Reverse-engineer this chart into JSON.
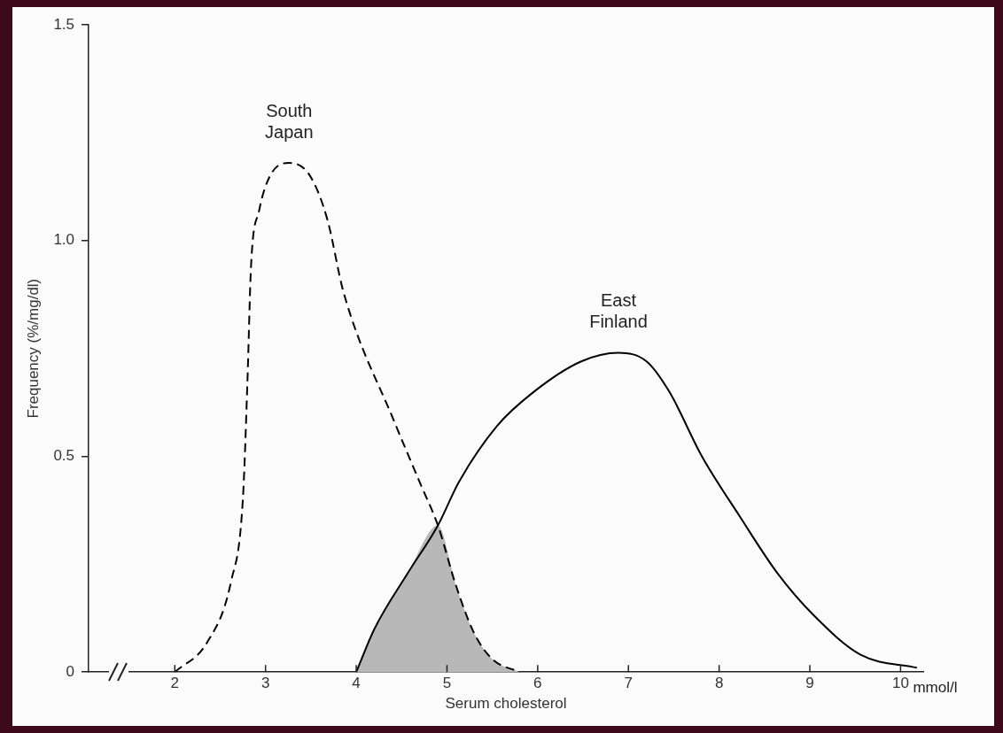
{
  "chart_data": {
    "type": "line",
    "xlabel": "Serum cholesterol",
    "ylabel": "Frequency (%/mg/dl)",
    "annotations": [
      "mmol/l"
    ],
    "xlim": [
      1.05,
      10.25
    ],
    "xticks": [
      2,
      3,
      4,
      5,
      6,
      7,
      8,
      9,
      10
    ],
    "ylim": [
      0,
      1.5
    ],
    "yticks": [
      0,
      {
        "value": 0.5,
        "label": "0.5"
      },
      {
        "value": 1,
        "label": "1.0"
      },
      1.5
    ],
    "grid": false,
    "legend": false,
    "series": [
      {
        "name": "South Japan",
        "color": "#000000",
        "line_style": "dashed",
        "x": [
          2,
          2.36,
          2.62,
          2.75,
          2.8,
          2.84,
          2.93,
          3.05,
          3.26,
          3.49,
          3.68,
          3.86,
          4.42,
          4.72,
          4.9,
          5.1,
          5.3,
          5.5,
          5.8
        ],
        "values": [
          0,
          0.07,
          0.21,
          0.4,
          0.67,
          0.94,
          1.07,
          1.15,
          1.18,
          1.15,
          1.05,
          0.88,
          0.58,
          0.43,
          0.34,
          0.2,
          0.09,
          0.03,
          0
        ]
      },
      {
        "name": "East Finland",
        "color": "#000000",
        "line_style": "solid",
        "x": [
          4,
          4.2,
          4.57,
          4.9,
          5.13,
          5.55,
          5.96,
          6.48,
          6.89,
          7.2,
          7.45,
          7.81,
          8.23,
          8.64,
          9.05,
          9.56,
          10.18
        ],
        "values": [
          0,
          0.1,
          0.23,
          0.34,
          0.44,
          0.57,
          0.65,
          0.72,
          0.74,
          0.72,
          0.65,
          0.5,
          0.36,
          0.23,
          0.13,
          0.04,
          0.01
        ]
      },
      {
        "type": "area",
        "color": "#b8b8b8",
        "x": [
          4,
          4.2,
          4.57,
          4.9,
          5.1,
          5.3,
          5.5,
          5.8
        ],
        "values": [
          0,
          0.1,
          0.23,
          0.34,
          0.2,
          0.09,
          0.03,
          0
        ]
      }
    ]
  }
}
